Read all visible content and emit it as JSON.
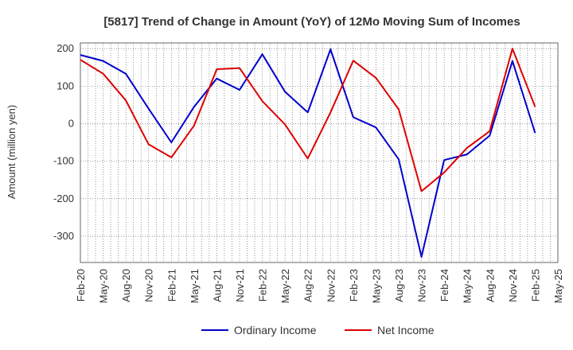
{
  "chart_data": {
    "type": "line",
    "title": "[5817]  Trend of Change in Amount (YoY) of 12Mo Moving Sum of Incomes",
    "xlabel": "",
    "ylabel": "Amount (million yen)",
    "ylim": [
      -370,
      215
    ],
    "yticks": [
      200,
      100,
      0,
      -100,
      -200,
      -300
    ],
    "categories": [
      "Feb-20",
      "May-20",
      "Aug-20",
      "Nov-20",
      "Feb-21",
      "May-21",
      "Aug-21",
      "Nov-21",
      "Feb-22",
      "May-22",
      "Aug-22",
      "Nov-22",
      "Feb-23",
      "May-23",
      "Aug-23",
      "Nov-23",
      "Feb-24",
      "May-24",
      "Aug-24",
      "Nov-24",
      "Feb-25",
      "May-25"
    ],
    "grid": true,
    "legend_position": "bottom",
    "series": [
      {
        "name": "Ordinary Income",
        "color": "#0000cc",
        "values": [
          183,
          167,
          133,
          40,
          -50,
          45,
          120,
          90,
          185,
          85,
          30,
          198,
          17,
          -10,
          -95,
          -355,
          -97,
          -82,
          -32,
          167,
          -25,
          null
        ]
      },
      {
        "name": "Net Income",
        "color": "#dd0000",
        "values": [
          170,
          133,
          62,
          -55,
          -90,
          -5,
          145,
          148,
          60,
          -2,
          -93,
          30,
          168,
          122,
          38,
          -180,
          -130,
          -65,
          -20,
          200,
          45,
          null
        ]
      }
    ]
  }
}
